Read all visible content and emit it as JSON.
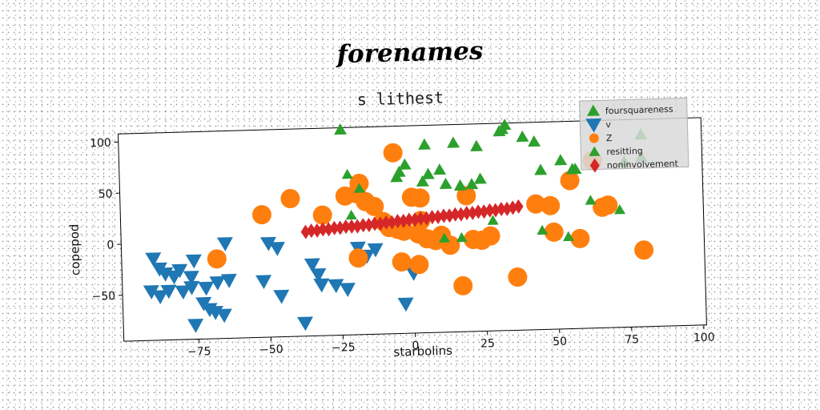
{
  "chart_data": {
    "type": "scatter",
    "title": "forenames",
    "subtitle": "s lithest",
    "xlabel": "starbolins",
    "ylabel": "copepod",
    "xlim": [
      -101,
      101
    ],
    "ylim": [
      -95,
      108
    ],
    "xticks": [
      -75,
      -50,
      -25,
      0,
      25,
      50,
      75,
      100
    ],
    "yticks": [
      -50,
      0,
      50,
      100
    ],
    "grid": false,
    "legend_position": "top-right",
    "legend_order": [
      "foursquareness",
      "v",
      "Z",
      "resitting",
      "noninvolvement"
    ],
    "series": [
      {
        "name": "foursquareness",
        "marker": "triangle-up",
        "color": "#2ca02c",
        "points": [
          [
            -24,
            106
          ],
          [
            5,
            89
          ],
          [
            15,
            90
          ],
          [
            23,
            86
          ],
          [
            31,
            100
          ],
          [
            32,
            102
          ],
          [
            33,
            106
          ],
          [
            39,
            94
          ],
          [
            43,
            89
          ],
          [
            45,
            61
          ],
          [
            52,
            70
          ],
          [
            56,
            61
          ],
          [
            57,
            61
          ],
          [
            74,
            67
          ],
          [
            80,
            71
          ],
          [
            80,
            93
          ],
          [
            -5,
            58
          ],
          [
            -4,
            63
          ],
          [
            -2,
            70
          ],
          [
            6,
            60
          ],
          [
            10,
            64
          ],
          [
            4,
            53
          ],
          [
            12,
            50
          ],
          [
            17,
            48
          ],
          [
            21,
            49
          ],
          [
            24,
            54
          ]
        ]
      },
      {
        "name": "v",
        "marker": "triangle-down",
        "color": "#1f77b4",
        "points": [
          [
            -90,
            -15
          ],
          [
            -88,
            -25
          ],
          [
            -86,
            -30
          ],
          [
            -83,
            -33
          ],
          [
            -81,
            -27
          ],
          [
            -77,
            -34
          ],
          [
            -76,
            -18
          ],
          [
            -91,
            -47
          ],
          [
            -88,
            -52
          ],
          [
            -85,
            -47
          ],
          [
            -80,
            -48
          ],
          [
            -77,
            -44
          ],
          [
            -72,
            -45
          ],
          [
            -68,
            -40
          ],
          [
            -64,
            -38
          ],
          [
            -73,
            -60
          ],
          [
            -71,
            -66
          ],
          [
            -69,
            -69
          ],
          [
            -66,
            -72
          ],
          [
            -76,
            -81
          ],
          [
            -65,
            -2
          ],
          [
            -52,
            -40
          ],
          [
            -46,
            -55
          ],
          [
            -50,
            -3
          ],
          [
            -47,
            -8
          ],
          [
            -38,
            -82
          ],
          [
            -35,
            -25
          ],
          [
            -33,
            -35
          ],
          [
            -32,
            -45
          ],
          [
            -27,
            -46
          ],
          [
            -23,
            -50
          ],
          [
            -13,
            -12
          ],
          [
            -19,
            -10
          ],
          [
            -16,
            -18
          ],
          [
            0,
            -36
          ],
          [
            -3,
            -66
          ]
        ]
      },
      {
        "name": "Z",
        "marker": "circle",
        "color": "#ff7f0e",
        "points": [
          [
            -6,
            82
          ],
          [
            -18,
            53
          ],
          [
            -19,
            43
          ],
          [
            -42,
            40
          ],
          [
            -52,
            25
          ],
          [
            -31,
            23
          ],
          [
            -68,
            -17
          ],
          [
            -19,
            -20
          ],
          [
            -23,
            41
          ],
          [
            -16,
            35
          ],
          [
            -13,
            30
          ],
          [
            -10,
            15
          ],
          [
            -8,
            9
          ],
          [
            -5,
            7
          ],
          [
            -3,
            5
          ],
          [
            0,
            38
          ],
          [
            3,
            37
          ],
          [
            3,
            15
          ],
          [
            -4,
            -25
          ],
          [
            2,
            -28
          ],
          [
            2,
            2
          ],
          [
            5,
            -3
          ],
          [
            8,
            -5
          ],
          [
            10,
            0
          ],
          [
            13,
            -10
          ],
          [
            19,
            38
          ],
          [
            17,
            -50
          ],
          [
            21,
            -5
          ],
          [
            27,
            -2
          ],
          [
            24,
            -6
          ],
          [
            36,
            -43
          ],
          [
            43,
            28
          ],
          [
            48,
            26
          ],
          [
            49,
            0
          ],
          [
            55,
            50
          ],
          [
            63,
            69
          ],
          [
            66,
            23
          ],
          [
            68,
            25
          ],
          [
            58,
            -7
          ],
          [
            80,
            -20
          ]
        ]
      },
      {
        "name": "resitting",
        "marker": "triangle-up-small",
        "color": "#2ca02c",
        "points": [
          [
            -22,
            62
          ],
          [
            -18,
            48
          ],
          [
            -21,
            22
          ],
          [
            11,
            -3
          ],
          [
            17,
            -3
          ],
          [
            28,
            13
          ],
          [
            45,
            2
          ],
          [
            54,
            -5
          ],
          [
            62,
            30
          ],
          [
            72,
            20
          ]
        ]
      },
      {
        "name": "noninvolvement",
        "marker": "diamond",
        "color": "#d62728",
        "points": [
          [
            -37,
            7
          ],
          [
            -35,
            8
          ],
          [
            -33,
            8
          ],
          [
            -31,
            9
          ],
          [
            -29,
            9
          ],
          [
            -27,
            10
          ],
          [
            -25,
            10
          ],
          [
            -23,
            11
          ],
          [
            -21,
            11
          ],
          [
            -19,
            11
          ],
          [
            -17,
            12
          ],
          [
            -15,
            12
          ],
          [
            -13,
            13
          ],
          [
            -11,
            13
          ],
          [
            -9,
            14
          ],
          [
            -7,
            14
          ],
          [
            -5,
            15
          ],
          [
            -3,
            15
          ],
          [
            -1,
            16
          ],
          [
            1,
            16
          ],
          [
            3,
            17
          ],
          [
            5,
            17
          ],
          [
            7,
            18
          ],
          [
            9,
            18
          ],
          [
            11,
            19
          ],
          [
            13,
            19
          ],
          [
            15,
            20
          ],
          [
            17,
            20
          ],
          [
            19,
            21
          ],
          [
            21,
            21
          ],
          [
            23,
            22
          ],
          [
            25,
            22
          ],
          [
            27,
            23
          ],
          [
            29,
            23
          ],
          [
            31,
            24
          ],
          [
            33,
            24
          ],
          [
            35,
            25
          ],
          [
            37,
            26
          ]
        ]
      }
    ]
  }
}
